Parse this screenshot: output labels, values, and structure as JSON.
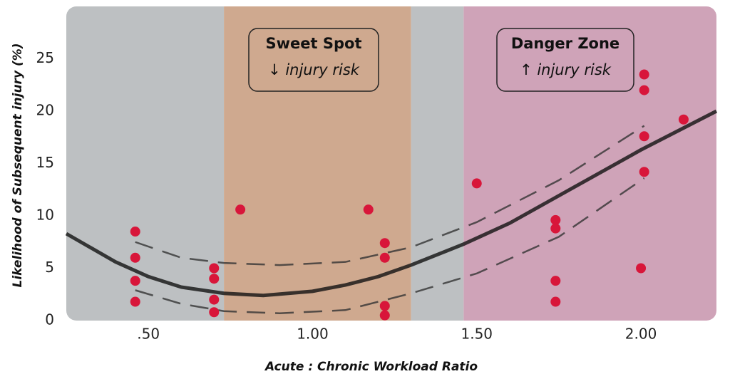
{
  "chart_data": {
    "type": "scatter",
    "x_label": "Acute : Chronic Workload Ratio",
    "y_label": "Likelihood of Subsequent injury (%)",
    "xlim": [
      0.25,
      2.23
    ],
    "ylim": [
      0,
      30
    ],
    "xticks": [
      {
        "value": 0.5,
        "label": ".50"
      },
      {
        "value": 1,
        "label": "1.00"
      },
      {
        "value": 1.5,
        "label": "1.50"
      },
      {
        "value": 2,
        "label": "2.00"
      }
    ],
    "yticks": [
      0,
      5,
      10,
      15,
      20,
      25
    ],
    "regions": [
      {
        "x": [
          0.25,
          0.73
        ],
        "color": "#bdc0c2"
      },
      {
        "x": [
          0.73,
          1.3
        ],
        "color": "#cfa98f"
      },
      {
        "x": [
          1.3,
          1.46
        ],
        "color": "#bdc0c2"
      },
      {
        "x": [
          1.46,
          2.23
        ],
        "color": "#cfa3b8"
      }
    ],
    "annotations": [
      {
        "title": "Sweet Spot",
        "text": "↓ injury risk"
      },
      {
        "title": "Danger Zone",
        "text": "↑ injury risk"
      }
    ],
    "points": {
      "color": "#d8163a",
      "x": [
        0.46,
        0.46,
        0.46,
        0.46,
        0.7,
        0.7,
        0.7,
        0.7,
        0.78,
        1.17,
        1.22,
        1.22,
        1.22,
        1.22,
        1.5,
        1.74,
        1.74,
        1.74,
        1.74,
        2.0,
        2.01,
        2.01,
        2.01,
        2.01,
        2.13
      ],
      "y": [
        8.5,
        6,
        3.8,
        1.8,
        5,
        4,
        2,
        0.8,
        10.6,
        10.6,
        7.4,
        6,
        1.4,
        0.5,
        13.1,
        9.6,
        8.8,
        3.8,
        1.8,
        5,
        23.5,
        22,
        17.6,
        14.2,
        19.2
      ]
    },
    "fit": {
      "color": "#111111",
      "x": [
        0.25,
        0.4,
        0.5,
        0.6,
        0.73,
        0.85,
        1.0,
        1.1,
        1.2,
        1.3,
        1.46,
        1.6,
        1.8,
        2.0,
        2.23
      ],
      "y": [
        8.3,
        5.6,
        4.2,
        3.2,
        2.6,
        2.4,
        2.8,
        3.4,
        4.2,
        5.3,
        7.3,
        9.3,
        12.8,
        16.3,
        20.0
      ]
    },
    "upper": {
      "color": "#333333",
      "x": [
        0.46,
        0.6,
        0.73,
        0.9,
        1.1,
        1.3,
        1.5,
        1.75,
        2.01
      ],
      "y": [
        7.5,
        6.0,
        5.5,
        5.3,
        5.6,
        7.0,
        9.4,
        13.4,
        18.6
      ]
    },
    "lower": {
      "color": "#333333",
      "x": [
        0.46,
        0.6,
        0.73,
        0.9,
        1.1,
        1.3,
        1.5,
        1.75,
        2.01
      ],
      "y": [
        2.9,
        1.6,
        0.9,
        0.7,
        1.0,
        2.6,
        4.5,
        8.0,
        13.6
      ]
    }
  }
}
